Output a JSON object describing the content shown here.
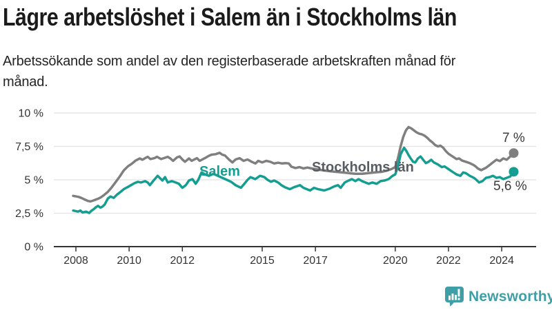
{
  "header": {
    "title": "Lägre arbetslöshet i Salem än i Stockholms län",
    "subtitle": "Arbetssökande som andel av den registerbaserade arbetskraften månad för månad."
  },
  "footer": {
    "brand": "Newsworthy"
  },
  "colors": {
    "salem": "#149e91",
    "stockholm_line": "#7f7f7f",
    "stockholm_label": "#565d63",
    "axis": "#333333",
    "grid": "#e2e2e2",
    "value_label": "#3a3a3a",
    "brand": "#3f9ea6",
    "title_text": "#1b1b1b"
  },
  "chart_data": {
    "type": "line",
    "title": "Lägre arbetslöshet i Salem än i Stockholms län",
    "subtitle": "Arbetssökande som andel av den registerbaserade arbetskraften månad för månad.",
    "unit": "%",
    "grid": true,
    "legend_position": "inline-labels",
    "xlim": [
      2007.85,
      2025.2
    ],
    "ylim": [
      0,
      10
    ],
    "x_ticks": [
      {
        "year": 2008,
        "label": "2008"
      },
      {
        "year": 2010,
        "label": "2010"
      },
      {
        "year": 2012,
        "label": "2012"
      },
      {
        "year": 2015,
        "label": "2015"
      },
      {
        "year": 2017,
        "label": "2017"
      },
      {
        "year": 2020,
        "label": "2020"
      },
      {
        "year": 2022,
        "label": "2022"
      },
      {
        "year": 2024,
        "label": "2024"
      }
    ],
    "y_ticks": [
      {
        "value": 0,
        "label": "0 %"
      },
      {
        "value": 2.5,
        "label": "2,5 %"
      },
      {
        "value": 5,
        "label": "5 %"
      },
      {
        "value": 7.5,
        "label": "7,5 %"
      },
      {
        "value": 10,
        "label": "10 %"
      }
    ],
    "series": [
      {
        "name": "Stockholms län",
        "color": "#7f7f7f",
        "end_label": "7 %",
        "end_value": 7.0,
        "points": [
          [
            2007.9,
            3.8
          ],
          [
            2008.1,
            3.72
          ],
          [
            2008.2,
            3.65
          ],
          [
            2008.3,
            3.55
          ],
          [
            2008.45,
            3.42
          ],
          [
            2008.55,
            3.38
          ],
          [
            2008.65,
            3.45
          ],
          [
            2008.75,
            3.52
          ],
          [
            2008.85,
            3.6
          ],
          [
            2008.95,
            3.7
          ],
          [
            2009.05,
            3.85
          ],
          [
            2009.2,
            4.1
          ],
          [
            2009.35,
            4.45
          ],
          [
            2009.5,
            4.85
          ],
          [
            2009.65,
            5.25
          ],
          [
            2009.8,
            5.7
          ],
          [
            2009.95,
            6.0
          ],
          [
            2010.1,
            6.2
          ],
          [
            2010.25,
            6.45
          ],
          [
            2010.4,
            6.6
          ],
          [
            2010.5,
            6.5
          ],
          [
            2010.6,
            6.62
          ],
          [
            2010.7,
            6.72
          ],
          [
            2010.8,
            6.55
          ],
          [
            2010.95,
            6.62
          ],
          [
            2011.05,
            6.72
          ],
          [
            2011.2,
            6.55
          ],
          [
            2011.3,
            6.62
          ],
          [
            2011.45,
            6.72
          ],
          [
            2011.55,
            6.6
          ],
          [
            2011.65,
            6.42
          ],
          [
            2011.8,
            6.68
          ],
          [
            2011.9,
            6.75
          ],
          [
            2012.0,
            6.52
          ],
          [
            2012.1,
            6.35
          ],
          [
            2012.25,
            6.6
          ],
          [
            2012.35,
            6.42
          ],
          [
            2012.45,
            6.52
          ],
          [
            2012.55,
            6.62
          ],
          [
            2012.65,
            6.42
          ],
          [
            2012.75,
            6.52
          ],
          [
            2012.9,
            6.68
          ],
          [
            2013.0,
            6.8
          ],
          [
            2013.1,
            6.88
          ],
          [
            2013.25,
            6.92
          ],
          [
            2013.4,
            7.02
          ],
          [
            2013.5,
            6.88
          ],
          [
            2013.6,
            6.82
          ],
          [
            2013.75,
            6.52
          ],
          [
            2013.88,
            6.3
          ],
          [
            2014.0,
            6.52
          ],
          [
            2014.15,
            6.62
          ],
          [
            2014.3,
            6.42
          ],
          [
            2014.45,
            6.52
          ],
          [
            2014.6,
            6.35
          ],
          [
            2014.75,
            6.22
          ],
          [
            2014.85,
            6.42
          ],
          [
            2015.0,
            6.3
          ],
          [
            2015.15,
            6.42
          ],
          [
            2015.3,
            6.35
          ],
          [
            2015.45,
            6.22
          ],
          [
            2015.6,
            6.28
          ],
          [
            2015.75,
            6.22
          ],
          [
            2015.9,
            6.25
          ],
          [
            2016.0,
            6.22
          ],
          [
            2016.1,
            5.98
          ],
          [
            2016.25,
            5.88
          ],
          [
            2016.4,
            5.95
          ],
          [
            2016.55,
            5.85
          ],
          [
            2016.7,
            5.92
          ],
          [
            2016.85,
            5.85
          ],
          [
            2017.0,
            5.8
          ],
          [
            2017.25,
            5.72
          ],
          [
            2017.5,
            5.65
          ],
          [
            2017.75,
            5.6
          ],
          [
            2018.0,
            5.55
          ],
          [
            2018.25,
            5.5
          ],
          [
            2018.5,
            5.45
          ],
          [
            2018.75,
            5.45
          ],
          [
            2019.0,
            5.5
          ],
          [
            2019.25,
            5.55
          ],
          [
            2019.5,
            5.6
          ],
          [
            2019.7,
            5.7
          ],
          [
            2019.85,
            5.8
          ],
          [
            2020.0,
            5.95
          ],
          [
            2020.1,
            6.6
          ],
          [
            2020.2,
            7.5
          ],
          [
            2020.3,
            8.2
          ],
          [
            2020.4,
            8.7
          ],
          [
            2020.5,
            8.95
          ],
          [
            2020.6,
            8.85
          ],
          [
            2020.7,
            8.7
          ],
          [
            2020.8,
            8.55
          ],
          [
            2020.9,
            8.45
          ],
          [
            2021.0,
            8.4
          ],
          [
            2021.1,
            8.3
          ],
          [
            2021.2,
            8.15
          ],
          [
            2021.3,
            7.95
          ],
          [
            2021.4,
            7.8
          ],
          [
            2021.5,
            7.6
          ],
          [
            2021.6,
            7.5
          ],
          [
            2021.7,
            7.55
          ],
          [
            2021.8,
            7.4
          ],
          [
            2021.9,
            7.15
          ],
          [
            2022.0,
            6.95
          ],
          [
            2022.15,
            6.75
          ],
          [
            2022.3,
            6.55
          ],
          [
            2022.4,
            6.6
          ],
          [
            2022.5,
            6.45
          ],
          [
            2022.65,
            6.35
          ],
          [
            2022.8,
            6.25
          ],
          [
            2022.95,
            6.1
          ],
          [
            2023.02,
            6.0
          ],
          [
            2023.1,
            5.85
          ],
          [
            2023.23,
            5.72
          ],
          [
            2023.41,
            5.9
          ],
          [
            2023.54,
            6.1
          ],
          [
            2023.67,
            6.3
          ],
          [
            2023.8,
            6.5
          ],
          [
            2023.93,
            6.4
          ],
          [
            2024.06,
            6.6
          ],
          [
            2024.19,
            6.5
          ],
          [
            2024.32,
            6.75
          ],
          [
            2024.45,
            7.0
          ]
        ]
      },
      {
        "name": "Salem",
        "color": "#149e91",
        "end_label": "5,6 %",
        "end_value": 5.6,
        "points": [
          [
            2007.9,
            2.7
          ],
          [
            2008.08,
            2.62
          ],
          [
            2008.17,
            2.7
          ],
          [
            2008.25,
            2.55
          ],
          [
            2008.38,
            2.62
          ],
          [
            2008.5,
            2.52
          ],
          [
            2008.58,
            2.68
          ],
          [
            2008.67,
            2.8
          ],
          [
            2008.75,
            2.95
          ],
          [
            2008.83,
            3.05
          ],
          [
            2008.92,
            2.92
          ],
          [
            2009.0,
            3.0
          ],
          [
            2009.08,
            3.15
          ],
          [
            2009.2,
            3.6
          ],
          [
            2009.3,
            3.75
          ],
          [
            2009.42,
            3.65
          ],
          [
            2009.55,
            3.9
          ],
          [
            2009.68,
            4.1
          ],
          [
            2009.8,
            4.3
          ],
          [
            2009.94,
            4.45
          ],
          [
            2010.07,
            4.6
          ],
          [
            2010.2,
            4.75
          ],
          [
            2010.33,
            4.85
          ],
          [
            2010.45,
            4.8
          ],
          [
            2010.6,
            4.9
          ],
          [
            2010.7,
            4.8
          ],
          [
            2010.78,
            4.6
          ],
          [
            2010.9,
            4.9
          ],
          [
            2011.07,
            5.3
          ],
          [
            2011.15,
            5.15
          ],
          [
            2011.25,
            4.95
          ],
          [
            2011.35,
            5.2
          ],
          [
            2011.45,
            4.8
          ],
          [
            2011.6,
            4.9
          ],
          [
            2011.75,
            4.8
          ],
          [
            2011.87,
            4.7
          ],
          [
            2012.0,
            4.4
          ],
          [
            2012.13,
            4.6
          ],
          [
            2012.25,
            4.95
          ],
          [
            2012.38,
            5.05
          ],
          [
            2012.5,
            4.7
          ],
          [
            2012.6,
            5.0
          ],
          [
            2012.72,
            5.55
          ],
          [
            2012.85,
            5.4
          ],
          [
            2013.0,
            5.3
          ],
          [
            2013.17,
            5.45
          ],
          [
            2013.33,
            5.3
          ],
          [
            2013.5,
            5.15
          ],
          [
            2013.67,
            5.0
          ],
          [
            2013.83,
            4.85
          ],
          [
            2014.0,
            4.6
          ],
          [
            2014.2,
            4.4
          ],
          [
            2014.33,
            4.7
          ],
          [
            2014.45,
            5.0
          ],
          [
            2014.56,
            5.2
          ],
          [
            2014.74,
            5.05
          ],
          [
            2014.92,
            5.3
          ],
          [
            2015.08,
            5.2
          ],
          [
            2015.2,
            5.0
          ],
          [
            2015.33,
            4.85
          ],
          [
            2015.45,
            4.95
          ],
          [
            2015.6,
            4.8
          ],
          [
            2015.72,
            4.6
          ],
          [
            2015.85,
            4.45
          ],
          [
            2016.04,
            4.3
          ],
          [
            2016.2,
            4.45
          ],
          [
            2016.42,
            4.6
          ],
          [
            2016.55,
            4.4
          ],
          [
            2016.8,
            4.2
          ],
          [
            2016.95,
            4.4
          ],
          [
            2017.1,
            4.3
          ],
          [
            2017.33,
            4.2
          ],
          [
            2017.55,
            4.35
          ],
          [
            2017.7,
            4.5
          ],
          [
            2017.85,
            4.6
          ],
          [
            2017.95,
            4.4
          ],
          [
            2018.1,
            4.8
          ],
          [
            2018.25,
            4.95
          ],
          [
            2018.37,
            5.05
          ],
          [
            2018.5,
            4.9
          ],
          [
            2018.62,
            5.05
          ],
          [
            2018.75,
            4.9
          ],
          [
            2018.88,
            4.8
          ],
          [
            2019.0,
            4.7
          ],
          [
            2019.14,
            4.8
          ],
          [
            2019.3,
            4.7
          ],
          [
            2019.45,
            4.9
          ],
          [
            2019.6,
            4.95
          ],
          [
            2019.75,
            5.05
          ],
          [
            2019.9,
            5.3
          ],
          [
            2020.0,
            5.4
          ],
          [
            2020.1,
            6.0
          ],
          [
            2020.2,
            6.9
          ],
          [
            2020.33,
            7.4
          ],
          [
            2020.42,
            7.15
          ],
          [
            2020.5,
            6.85
          ],
          [
            2020.58,
            6.6
          ],
          [
            2020.67,
            6.35
          ],
          [
            2020.75,
            6.3
          ],
          [
            2020.85,
            6.6
          ],
          [
            2020.95,
            6.75
          ],
          [
            2021.05,
            6.5
          ],
          [
            2021.15,
            6.25
          ],
          [
            2021.25,
            6.35
          ],
          [
            2021.35,
            6.5
          ],
          [
            2021.45,
            6.3
          ],
          [
            2021.6,
            6.15
          ],
          [
            2021.75,
            5.95
          ],
          [
            2021.85,
            6.0
          ],
          [
            2022.0,
            5.8
          ],
          [
            2022.15,
            5.6
          ],
          [
            2022.3,
            5.4
          ],
          [
            2022.45,
            5.3
          ],
          [
            2022.55,
            5.55
          ],
          [
            2022.65,
            5.5
          ],
          [
            2022.8,
            5.3
          ],
          [
            2022.95,
            5.15
          ],
          [
            2023.02,
            5.05
          ],
          [
            2023.15,
            4.8
          ],
          [
            2023.28,
            4.9
          ],
          [
            2023.41,
            5.15
          ],
          [
            2023.54,
            5.2
          ],
          [
            2023.67,
            5.3
          ],
          [
            2023.8,
            5.15
          ],
          [
            2023.93,
            5.2
          ],
          [
            2024.06,
            5.05
          ],
          [
            2024.19,
            5.15
          ],
          [
            2024.32,
            5.25
          ],
          [
            2024.45,
            5.6
          ]
        ]
      }
    ]
  }
}
